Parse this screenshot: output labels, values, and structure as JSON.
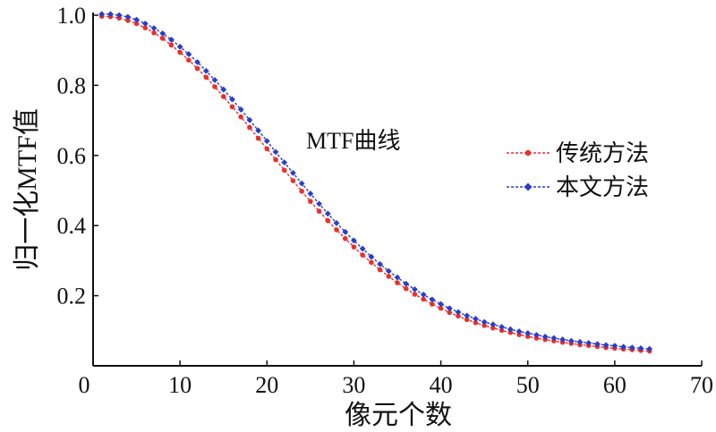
{
  "chart_data": {
    "type": "line",
    "xlabel": "像元个数",
    "ylabel": "归一化MTF值",
    "xlim": [
      0,
      70
    ],
    "ylim": [
      0,
      1.0
    ],
    "xticks": [
      "0",
      "10",
      "20",
      "30",
      "40",
      "50",
      "60",
      "70"
    ],
    "yticks": [
      "0.2",
      "0.4",
      "0.6",
      "0.8",
      "1.0"
    ],
    "annotations": [
      {
        "text": "MTF曲线",
        "x": 24.5,
        "y": 0.62
      }
    ],
    "legend_position": "right",
    "grid": false,
    "x": [
      1,
      2,
      3,
      4,
      5,
      6,
      7,
      8,
      9,
      10,
      11,
      12,
      13,
      14,
      15,
      16,
      17,
      18,
      19,
      20,
      21,
      22,
      23,
      24,
      25,
      26,
      27,
      28,
      29,
      30,
      31,
      32,
      33,
      34,
      35,
      36,
      37,
      38,
      39,
      40,
      41,
      42,
      43,
      44,
      45,
      46,
      47,
      48,
      49,
      50,
      51,
      52,
      53,
      54,
      55,
      56,
      57,
      58,
      59,
      60,
      61,
      62,
      63,
      64
    ],
    "series": [
      {
        "name": "传统方法",
        "color": "#e8302a",
        "marker": "dot",
        "values": [
          1.0,
          0.999,
          0.995,
          0.988,
          0.979,
          0.967,
          0.953,
          0.937,
          0.918,
          0.897,
          0.875,
          0.851,
          0.826,
          0.799,
          0.771,
          0.742,
          0.713,
          0.683,
          0.652,
          0.622,
          0.591,
          0.561,
          0.531,
          0.501,
          0.472,
          0.444,
          0.417,
          0.391,
          0.366,
          0.342,
          0.319,
          0.298,
          0.277,
          0.258,
          0.24,
          0.223,
          0.207,
          0.193,
          0.179,
          0.167,
          0.155,
          0.145,
          0.135,
          0.126,
          0.118,
          0.111,
          0.104,
          0.098,
          0.092,
          0.087,
          0.082,
          0.078,
          0.074,
          0.07,
          0.067,
          0.063,
          0.061,
          0.058,
          0.055,
          0.053,
          0.051,
          0.049,
          0.047,
          0.045
        ]
      },
      {
        "name": "本文方法",
        "color": "#2a3ec8",
        "marker": "diamond",
        "values": [
          1.0,
          1.0,
          0.997,
          0.992,
          0.984,
          0.973,
          0.96,
          0.945,
          0.927,
          0.907,
          0.886,
          0.863,
          0.838,
          0.812,
          0.785,
          0.757,
          0.728,
          0.698,
          0.668,
          0.638,
          0.607,
          0.577,
          0.547,
          0.517,
          0.488,
          0.459,
          0.431,
          0.404,
          0.379,
          0.354,
          0.331,
          0.308,
          0.287,
          0.267,
          0.249,
          0.231,
          0.215,
          0.2,
          0.186,
          0.173,
          0.161,
          0.15,
          0.14,
          0.131,
          0.122,
          0.115,
          0.108,
          0.101,
          0.095,
          0.09,
          0.085,
          0.08,
          0.076,
          0.072,
          0.068,
          0.065,
          0.062,
          0.059,
          0.056,
          0.054,
          0.051,
          0.049,
          0.047,
          0.045
        ]
      }
    ]
  }
}
